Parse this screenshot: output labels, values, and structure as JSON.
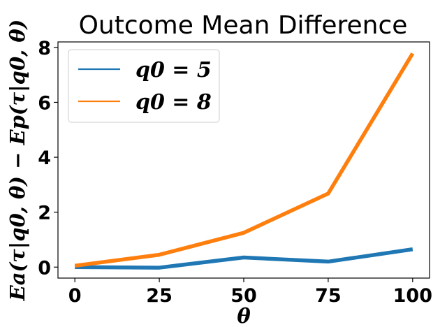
{
  "chart_data": {
    "type": "line",
    "title": "Outcome Mean Difference",
    "xlabel": "θ",
    "ylabel": "Ea(τ|q0, θ) − Ep(τ|q0, θ)",
    "x": [
      0,
      25,
      50,
      75,
      100
    ],
    "xticks": [
      0,
      25,
      50,
      75,
      100
    ],
    "yticks": [
      0,
      2,
      4,
      6,
      8
    ],
    "xlim": [
      -5,
      105
    ],
    "ylim": [
      -0.4,
      8.2
    ],
    "grid": false,
    "legend_position": "top-left",
    "series": [
      {
        "name": "q0 = 5",
        "color": "#1f77b4",
        "values": [
          0.0,
          -0.02,
          0.35,
          0.2,
          0.65
        ]
      },
      {
        "name": "q0 = 8",
        "color": "#ff7f0e",
        "values": [
          0.05,
          0.45,
          1.25,
          2.68,
          7.78
        ]
      }
    ]
  }
}
